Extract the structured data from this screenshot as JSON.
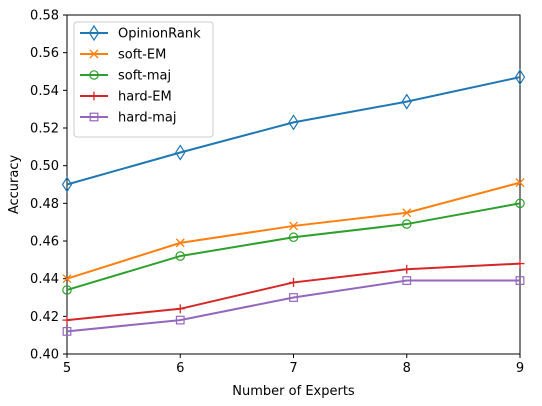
{
  "chart_data": {
    "type": "line",
    "title": "",
    "xlabel": "Number of Experts",
    "ylabel": "Accuracy",
    "x": [
      5,
      6,
      7,
      8,
      9
    ],
    "xlim": [
      5,
      9
    ],
    "ylim": [
      0.4,
      0.58
    ],
    "xticks": [
      "5",
      "6",
      "7",
      "8",
      "9"
    ],
    "yticks": [
      "0.40",
      "0.42",
      "0.44",
      "0.46",
      "0.48",
      "0.50",
      "0.52",
      "0.54",
      "0.56",
      "0.58"
    ],
    "grid": false,
    "legend_position": "top-left",
    "series": [
      {
        "name": "OpinionRank",
        "color": "#1f77b4",
        "marker": "diamond",
        "values": [
          0.49,
          0.507,
          0.523,
          0.534,
          0.547
        ]
      },
      {
        "name": "soft-EM",
        "color": "#ff7f0e",
        "marker": "x",
        "values": [
          0.44,
          0.459,
          0.468,
          0.475,
          0.491
        ]
      },
      {
        "name": "soft-maj",
        "color": "#2ca02c",
        "marker": "circle",
        "values": [
          0.434,
          0.452,
          0.462,
          0.469,
          0.48
        ]
      },
      {
        "name": "hard-EM",
        "color": "#d62728",
        "marker": "plus",
        "values": [
          0.418,
          0.424,
          0.438,
          0.445,
          0.448
        ]
      },
      {
        "name": "hard-maj",
        "color": "#9467bd",
        "marker": "square",
        "values": [
          0.412,
          0.418,
          0.43,
          0.439,
          0.439
        ]
      }
    ]
  }
}
